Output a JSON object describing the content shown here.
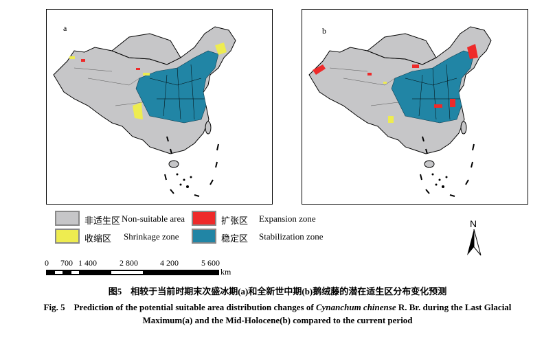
{
  "panels": [
    {
      "label": "a"
    },
    {
      "label": "b"
    }
  ],
  "legend": [
    {
      "zh": "非适生区",
      "en": "Non-suitable area",
      "color": "#c6c6c8"
    },
    {
      "zh": "扩张区",
      "en": "Expansion zone",
      "color": "#ee2a2a"
    },
    {
      "zh": "收缩区",
      "en": "Shrinkage zone",
      "color": "#eeec50"
    },
    {
      "zh": "稳定区",
      "en": "Stabilization zone",
      "color": "#2185a5"
    }
  ],
  "north": "N",
  "scale": {
    "ticks": [
      "0",
      "700",
      "1 400",
      "2 800",
      "4 200",
      "5 600"
    ],
    "unit": "km"
  },
  "caption": {
    "zh": "图5　相较于当前时期末次盛冰期(a)和全新世中期(b)鹅绒藤的潜在适生区分布变化预测",
    "en_prefix": "Fig. 5　Prediction of the potential suitable area distribution changes of ",
    "species": "Cynanchum chinense",
    "en_line1_suffix": " R. Br. during the Last Glacial",
    "en_line2": "Maximum(a) and the Mid-Holocene(b) compared to the current period"
  }
}
